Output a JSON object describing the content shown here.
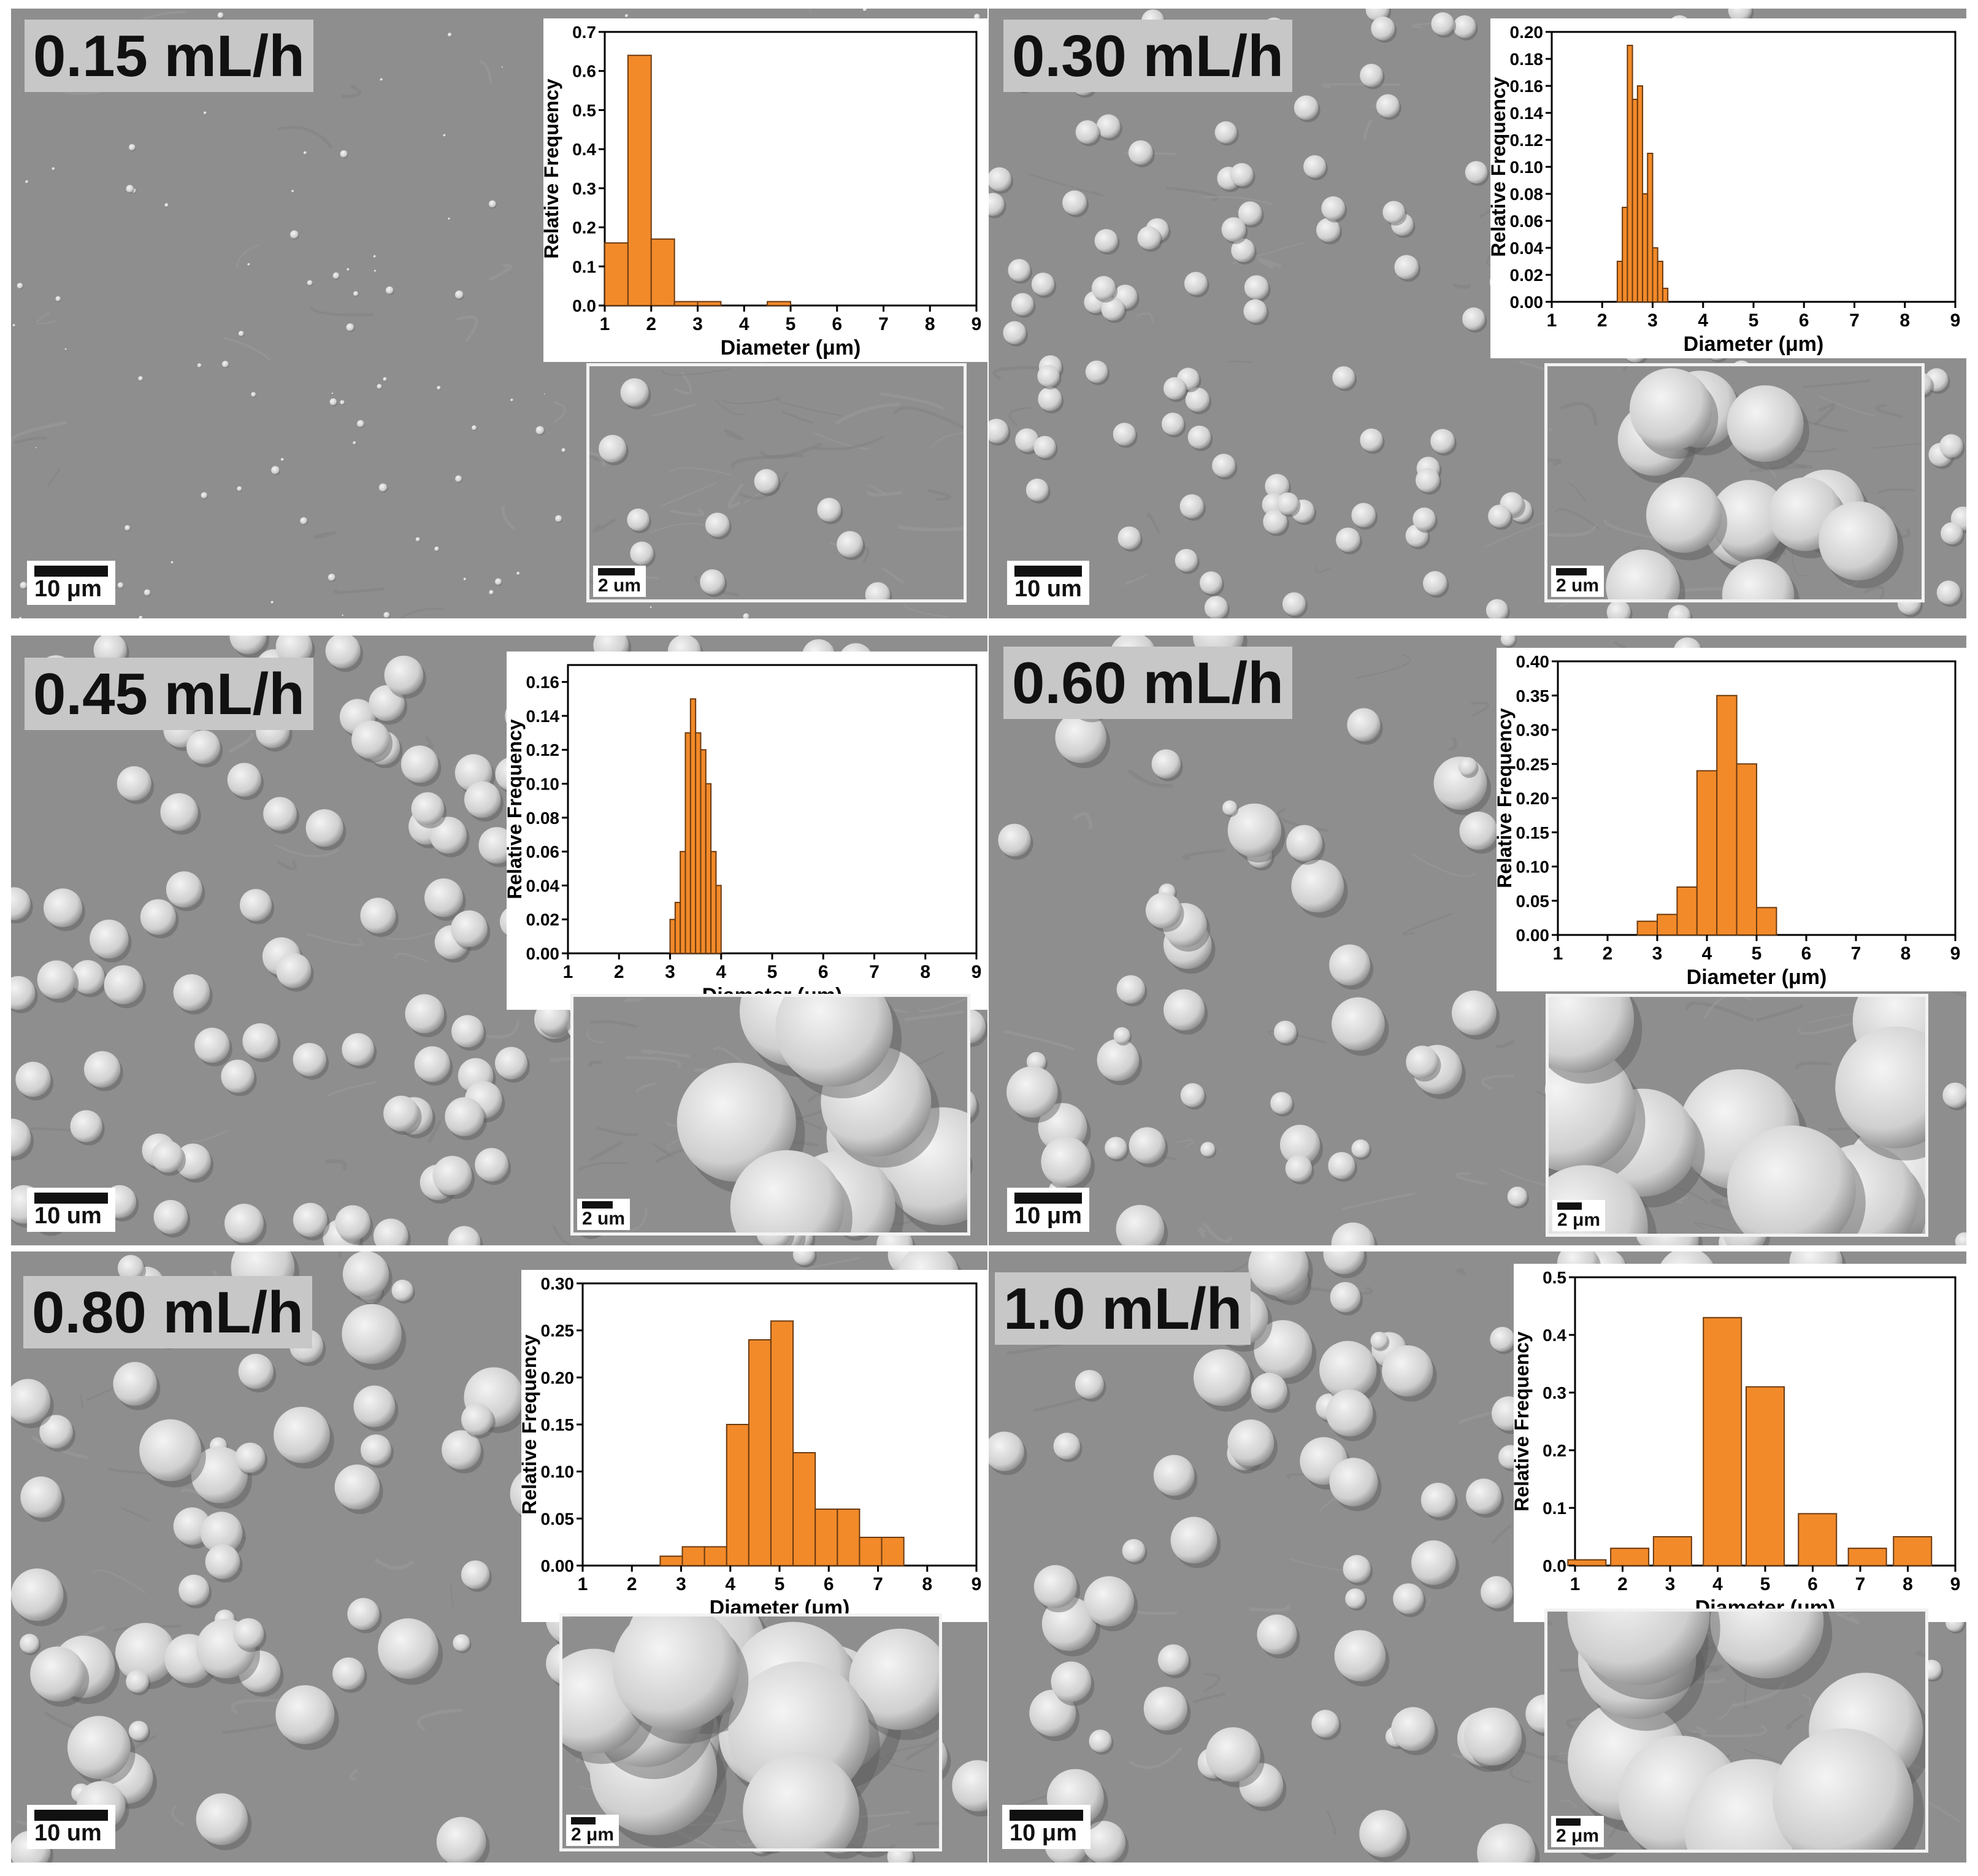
{
  "colors": {
    "bar_fill": "#f28a2a",
    "bar_stroke": "#6b3a10",
    "sem_bg": "#8d8d8d",
    "sphere": "#d6d6d6"
  },
  "panels": [
    {
      "flow": "0.15 mL/h",
      "scale_main": "10 μm",
      "scale_inset": "2 um"
    },
    {
      "flow": "0.30 mL/h",
      "scale_main": "10  um",
      "scale_inset": "2  um"
    },
    {
      "flow": "0.45 mL/h",
      "scale_main": "10  um",
      "scale_inset": "2  um"
    },
    {
      "flow": "0.60 mL/h",
      "scale_main": "10 μm",
      "scale_inset": "2 μm"
    },
    {
      "flow": "0.80 mL/h",
      "scale_main": "10  um",
      "scale_inset": "2 μm"
    },
    {
      "flow": "1.0 mL/h",
      "scale_main": "10 μm",
      "scale_inset": "2 μm"
    }
  ],
  "chart_data": [
    {
      "type": "bar",
      "xlabel": "Diameter (μm)",
      "ylabel": "Relative Frequency",
      "xlim": [
        1,
        9
      ],
      "ylim": [
        0,
        0.7
      ],
      "xticks": [
        "1",
        "2",
        "3",
        "4",
        "5",
        "6",
        "7",
        "8",
        "9"
      ],
      "yticks": [
        "0.0",
        "0.1",
        "0.2",
        "0.3",
        "0.4",
        "0.5",
        "0.6",
        "0.7"
      ],
      "bin_width": 0.5,
      "x": [
        1.25,
        1.75,
        2.25,
        2.75,
        3.25,
        4.75
      ],
      "values": [
        0.16,
        0.64,
        0.17,
        0.01,
        0.01,
        0.01
      ]
    },
    {
      "type": "bar",
      "xlabel": "Diameter (μm)",
      "ylabel": "Relative Frequency",
      "xlim": [
        1,
        9
      ],
      "ylim": [
        0,
        0.2
      ],
      "xticks": [
        "1",
        "2",
        "3",
        "4",
        "5",
        "6",
        "7",
        "8",
        "9"
      ],
      "yticks": [
        "0.00",
        "0.02",
        "0.04",
        "0.06",
        "0.08",
        "0.10",
        "0.12",
        "0.14",
        "0.16",
        "0.18",
        "0.20"
      ],
      "bin_width": 0.1,
      "x": [
        2.35,
        2.45,
        2.55,
        2.65,
        2.75,
        2.85,
        2.95,
        3.05,
        3.15,
        3.25
      ],
      "values": [
        0.03,
        0.07,
        0.19,
        0.15,
        0.16,
        0.08,
        0.11,
        0.04,
        0.03,
        0.01
      ]
    },
    {
      "type": "bar",
      "xlabel": "Diameter (μm)",
      "ylabel": "Relative Frequency",
      "xlim": [
        1,
        9
      ],
      "ylim": [
        0,
        0.17
      ],
      "xticks": [
        "1",
        "2",
        "3",
        "4",
        "5",
        "6",
        "7",
        "8",
        "9"
      ],
      "yticks": [
        "0.00",
        "0.02",
        "0.04",
        "0.06",
        "0.08",
        "0.10",
        "0.12",
        "0.14",
        "0.16"
      ],
      "bin_width": 0.1,
      "x": [
        3.05,
        3.15,
        3.25,
        3.35,
        3.45,
        3.55,
        3.65,
        3.75,
        3.85,
        3.95
      ],
      "values": [
        0.02,
        0.03,
        0.06,
        0.13,
        0.15,
        0.13,
        0.12,
        0.1,
        0.06,
        0.04
      ]
    },
    {
      "type": "bar",
      "xlabel": "Diameter (μm)",
      "ylabel": "Relative Frequency",
      "xlim": [
        1,
        9
      ],
      "ylim": [
        0,
        0.4
      ],
      "xticks": [
        "1",
        "2",
        "3",
        "4",
        "5",
        "6",
        "7",
        "8",
        "9"
      ],
      "yticks": [
        "0.00",
        "0.05",
        "0.10",
        "0.15",
        "0.20",
        "0.25",
        "0.30",
        "0.35",
        "0.40"
      ],
      "bin_width": 0.4,
      "x": [
        2.8,
        3.2,
        3.6,
        4.0,
        4.4,
        4.8,
        5.2,
        5.6
      ],
      "values": [
        0.02,
        0.03,
        0.07,
        0.24,
        0.35,
        0.25,
        0.04,
        0.0
      ]
    },
    {
      "type": "bar",
      "xlabel": "Diameter (μm)",
      "ylabel": "Relative Frequency",
      "xlim": [
        1,
        9
      ],
      "ylim": [
        0,
        0.3
      ],
      "xticks": [
        "1",
        "2",
        "3",
        "4",
        "5",
        "6",
        "7",
        "8",
        "9"
      ],
      "yticks": [
        "0.00",
        "0.05",
        "0.10",
        "0.15",
        "0.20",
        "0.25",
        "0.30"
      ],
      "bin_width": 0.45,
      "x": [
        2.8,
        3.25,
        3.7,
        4.15,
        4.6,
        5.05,
        5.5,
        5.95,
        6.4,
        6.85,
        7.3,
        7.75
      ],
      "values": [
        0.01,
        0.02,
        0.02,
        0.15,
        0.24,
        0.26,
        0.12,
        0.06,
        0.06,
        0.03,
        0.03,
        0.0
      ]
    },
    {
      "type": "bar",
      "xlabel": "Diameter (μm)",
      "ylabel": "Relative Frequency",
      "xlim": [
        1,
        9
      ],
      "ylim": [
        0,
        0.5
      ],
      "xticks": [
        "1",
        "2",
        "3",
        "4",
        "5",
        "6",
        "7",
        "8",
        "9"
      ],
      "yticks": [
        "0.0",
        "0.1",
        "0.2",
        "0.3",
        "0.4",
        "0.5"
      ],
      "bin_width": 0.8,
      "x": [
        1.25,
        2.15,
        3.05,
        4.1,
        5.0,
        6.1,
        7.15,
        8.1
      ],
      "values": [
        0.01,
        0.03,
        0.05,
        0.43,
        0.31,
        0.09,
        0.03,
        0.05
      ]
    }
  ]
}
